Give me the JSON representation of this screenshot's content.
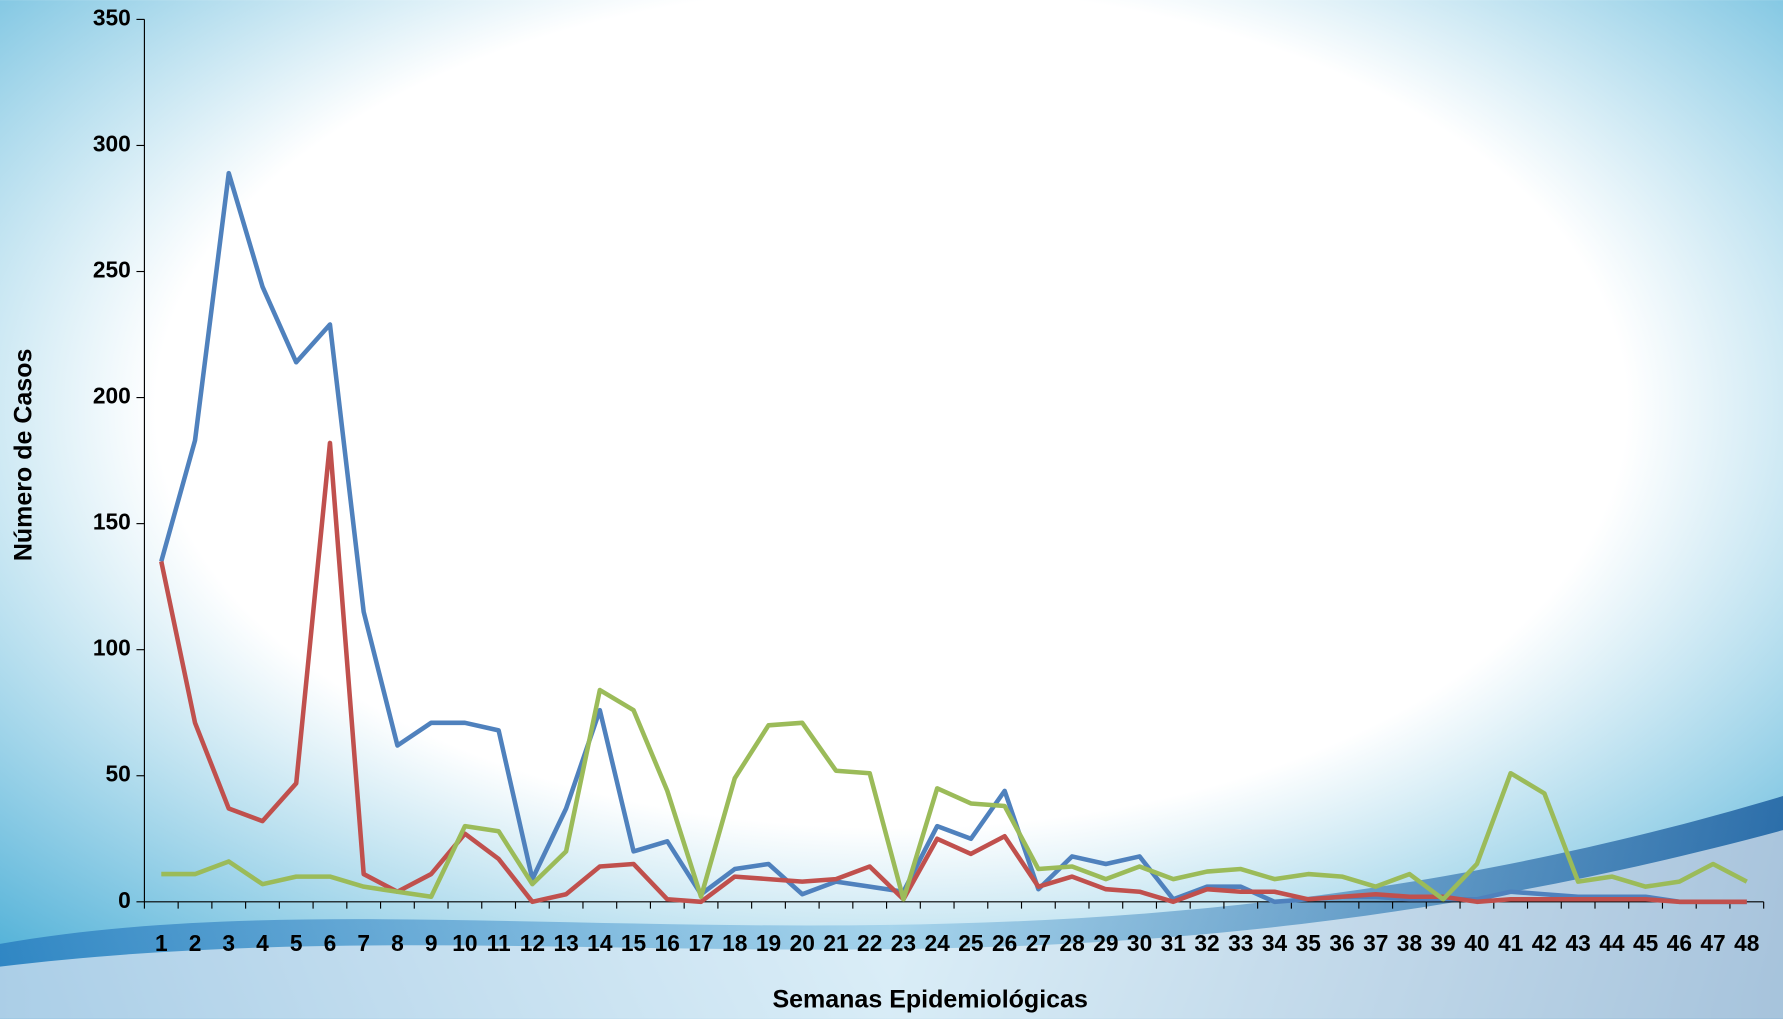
{
  "chart_data": {
    "type": "line",
    "x_label": "Semanas Epidemiológicas",
    "y_label": "Número de Casos",
    "categories": [
      "1",
      "2",
      "3",
      "4",
      "5",
      "6",
      "7",
      "8",
      "9",
      "10",
      "11",
      "12",
      "13",
      "14",
      "15",
      "16",
      "17",
      "18",
      "19",
      "20",
      "21",
      "22",
      "23",
      "24",
      "25",
      "26",
      "27",
      "28",
      "29",
      "30",
      "31",
      "32",
      "33",
      "34",
      "35",
      "36",
      "37",
      "38",
      "39",
      "40",
      "41",
      "42",
      "43",
      "44",
      "45",
      "46",
      "47",
      "48"
    ],
    "series": [
      {
        "color": "#4f81bd",
        "values": [
          135,
          183,
          289,
          244,
          214,
          229,
          115,
          62,
          71,
          71,
          68,
          9,
          37,
          76,
          20,
          24,
          3,
          13,
          15,
          3,
          8,
          6,
          4,
          30,
          25,
          44,
          5,
          18,
          15,
          18,
          1,
          6,
          6,
          0,
          1,
          2,
          2,
          1,
          1,
          1,
          4,
          3,
          2,
          2,
          2,
          0,
          0,
          0
        ]
      },
      {
        "color": "#c0504d",
        "values": [
          135,
          71,
          37,
          32,
          47,
          182,
          11,
          4,
          11,
          27,
          17,
          0,
          3,
          14,
          15,
          1,
          0,
          10,
          9,
          8,
          9,
          14,
          1,
          25,
          19,
          26,
          6,
          10,
          5,
          4,
          0,
          5,
          4,
          4,
          1,
          2,
          3,
          2,
          2,
          0,
          1,
          1,
          1,
          1,
          1,
          0,
          0,
          0
        ]
      },
      {
        "color": "#9bbb59",
        "values": [
          11,
          11,
          16,
          7,
          10,
          10,
          6,
          4,
          2,
          30,
          28,
          7,
          20,
          84,
          76,
          44,
          2,
          49,
          70,
          71,
          52,
          51,
          1,
          45,
          39,
          38,
          13,
          14,
          9,
          14,
          9,
          12,
          13,
          9,
          11,
          10,
          6,
          11,
          1,
          15,
          51,
          43,
          8,
          10,
          6,
          8,
          15,
          8
        ]
      }
    ],
    "ylim": [
      0,
      350
    ],
    "yticks": [
      0,
      50,
      100,
      150,
      200,
      250,
      300,
      350
    ]
  }
}
